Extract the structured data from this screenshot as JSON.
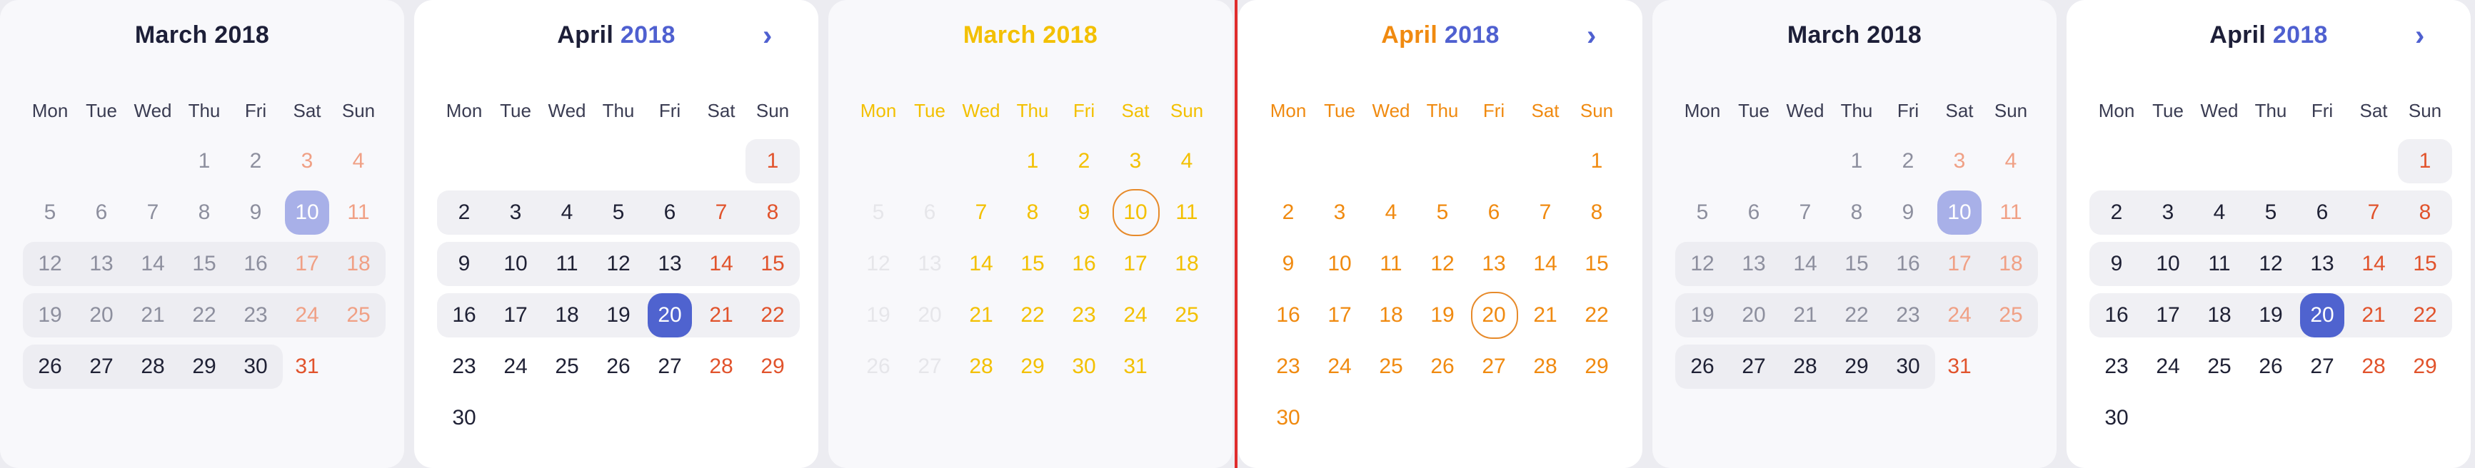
{
  "weekdays": [
    "Mon",
    "Tue",
    "Wed",
    "Thu",
    "Fri",
    "Sat",
    "Sun"
  ],
  "panels": [
    {
      "month": "March",
      "year": "2018",
      "selected": "10"
    },
    {
      "month": "April",
      "year": "2018",
      "selected": "20",
      "next": "›"
    },
    {
      "month": "March",
      "year": "2018",
      "selected": "10"
    },
    {
      "month": "April",
      "year": "2018",
      "selected": "20",
      "next": "›"
    },
    {
      "month": "March",
      "year": "2018",
      "selected": "10"
    },
    {
      "month": "April",
      "year": "2018",
      "selected": "20",
      "next": "›"
    }
  ],
  "colors": {
    "accent": "#4f60d0",
    "weekend": "#e1532c",
    "selected": "#4f63cf",
    "ghostYellow": "#f3c000",
    "divider": "#e02c2c"
  }
}
